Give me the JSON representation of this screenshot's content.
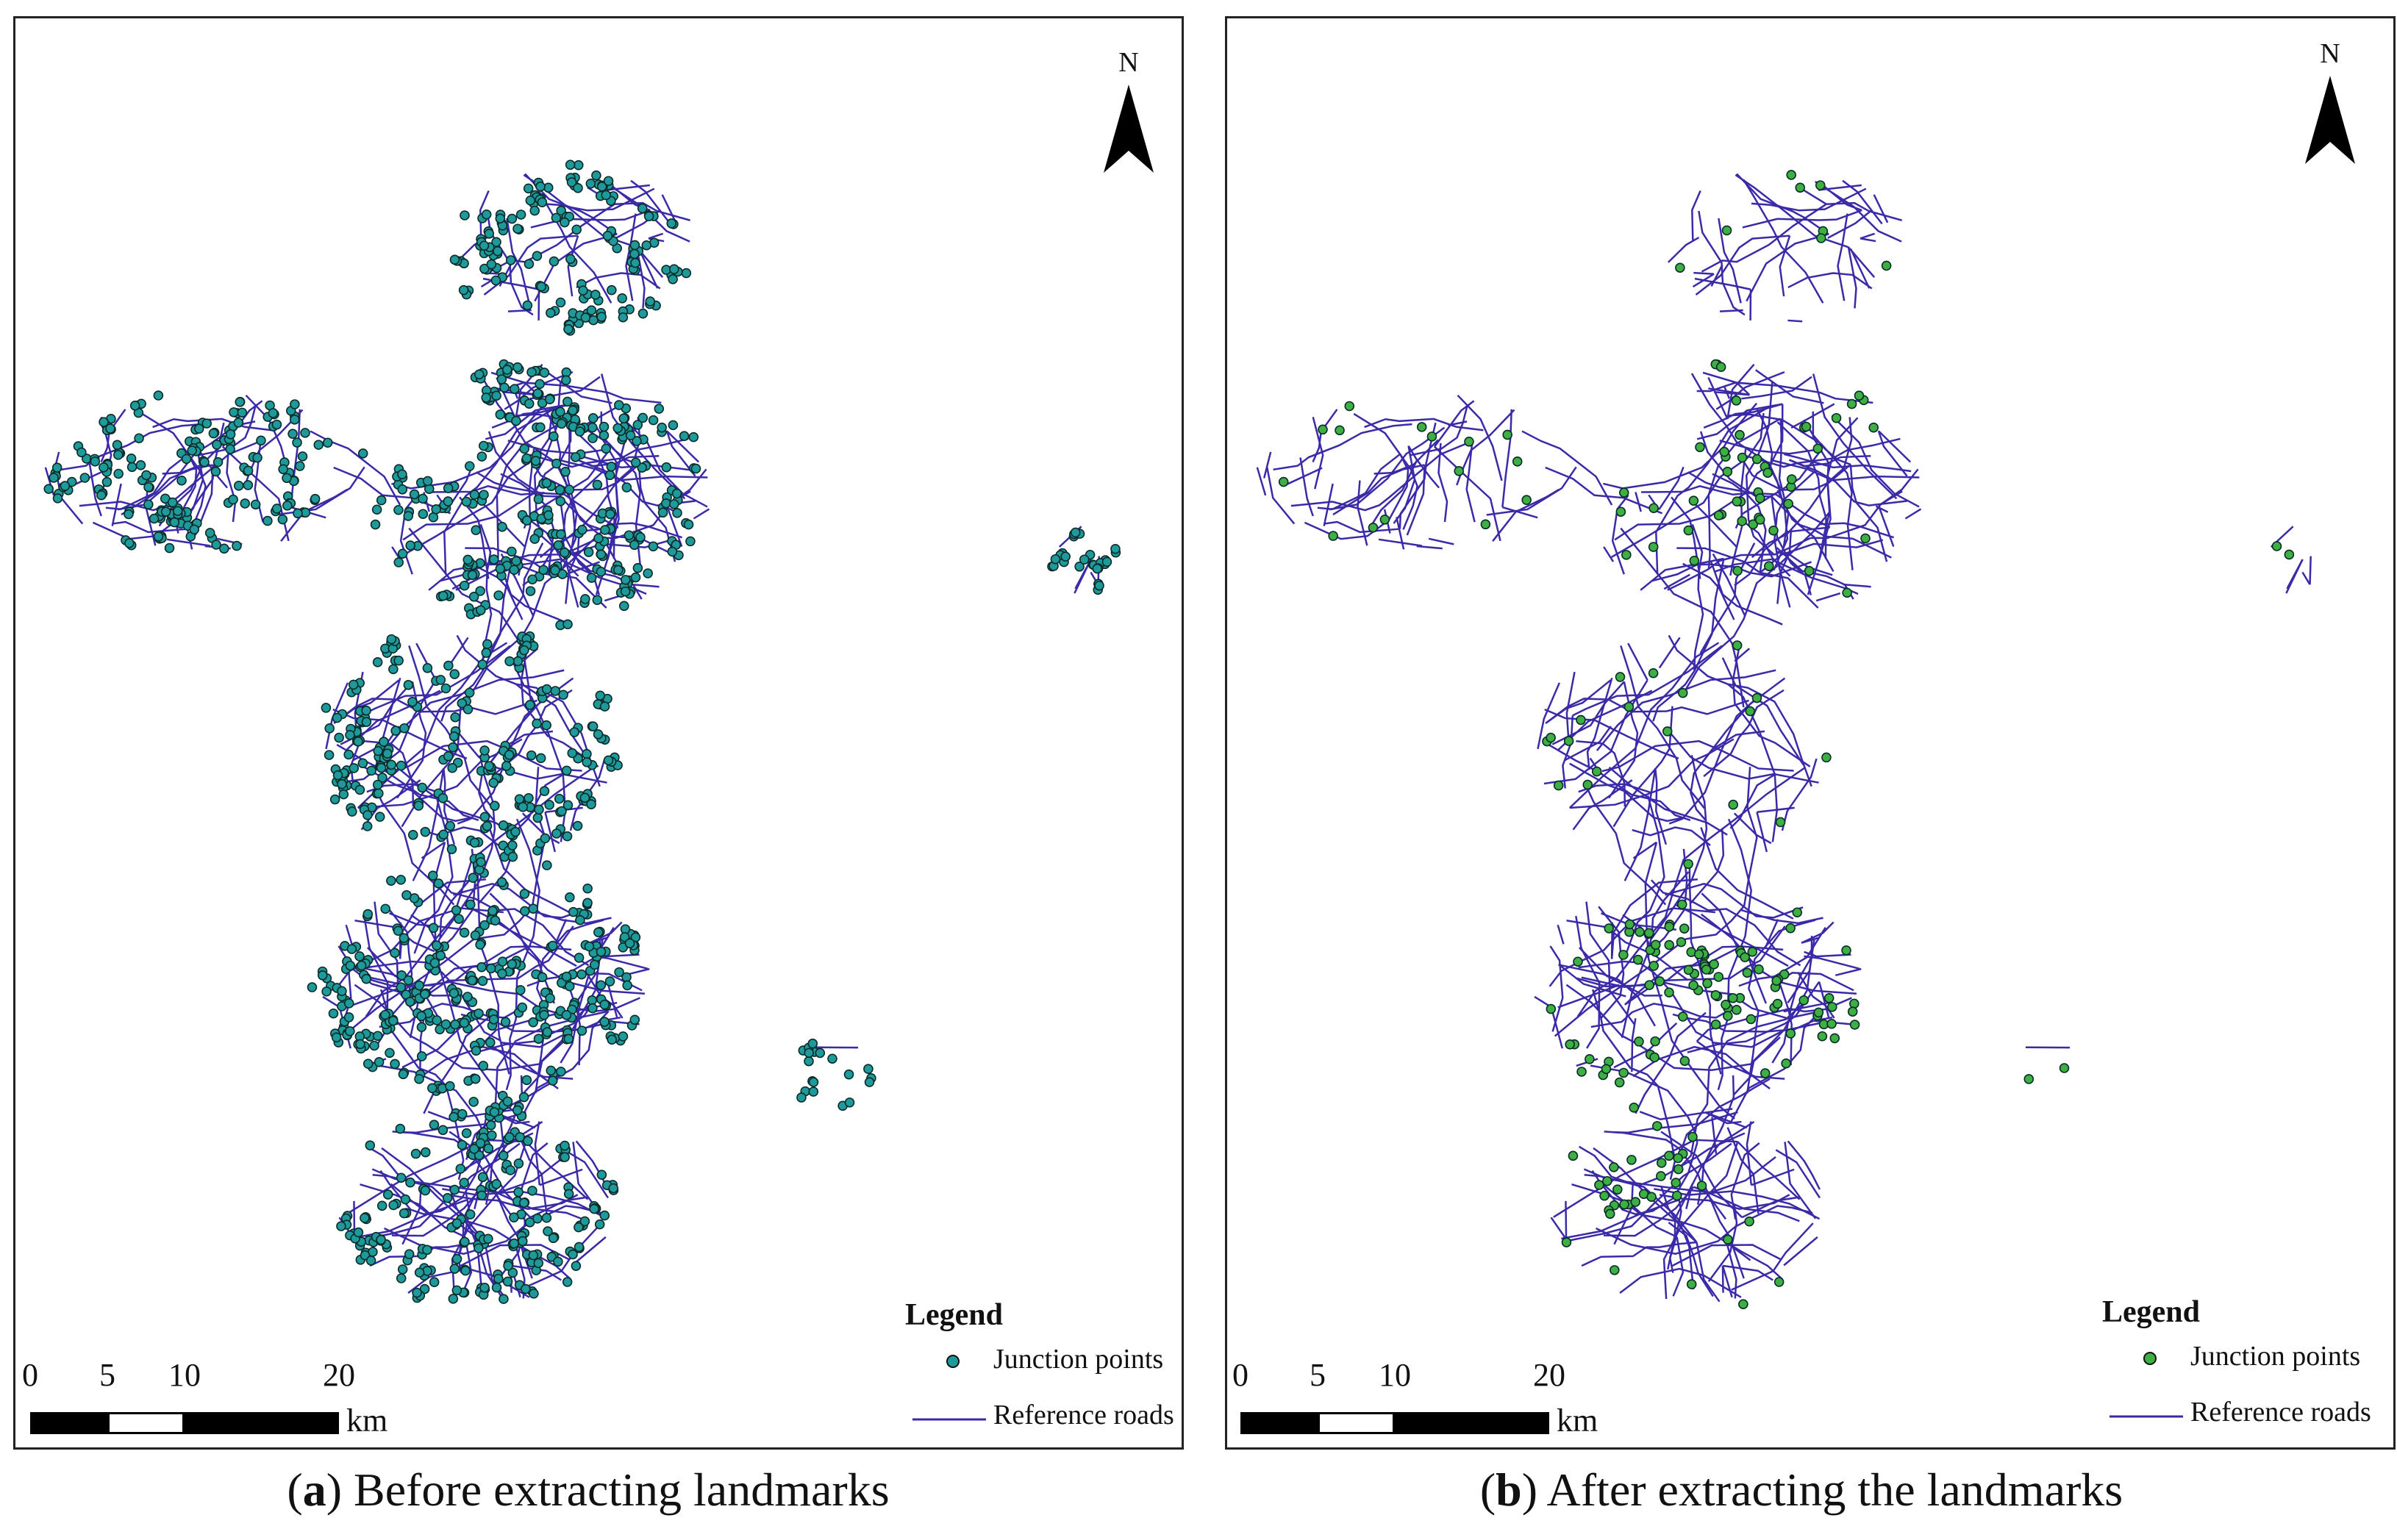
{
  "panels": [
    {
      "id": "a",
      "caption_letter": "a",
      "caption_text": ") Before extracting landmarks",
      "caption_open": "(",
      "north_label": "N",
      "legend": {
        "title": "Legend",
        "junction_label": "Junction points",
        "roads_label": "Reference roads"
      },
      "scale": {
        "ticks": [
          "0",
          "5",
          "10",
          "20"
        ],
        "unit": "km"
      },
      "junction_color": "#1f9a9a",
      "road_color": "#3a2aa8",
      "junction_density": "dense"
    },
    {
      "id": "b",
      "caption_letter": "b",
      "caption_text": ") After extracting the landmarks",
      "caption_open": "(",
      "north_label": "N",
      "legend": {
        "title": "Legend",
        "junction_label": "Junction points",
        "roads_label": "Reference roads"
      },
      "scale": {
        "ticks": [
          "0",
          "5",
          "10",
          "20"
        ],
        "unit": "km"
      },
      "junction_color": "#3cb043",
      "road_color": "#3a2aa8",
      "junction_density": "sparse"
    }
  ]
}
